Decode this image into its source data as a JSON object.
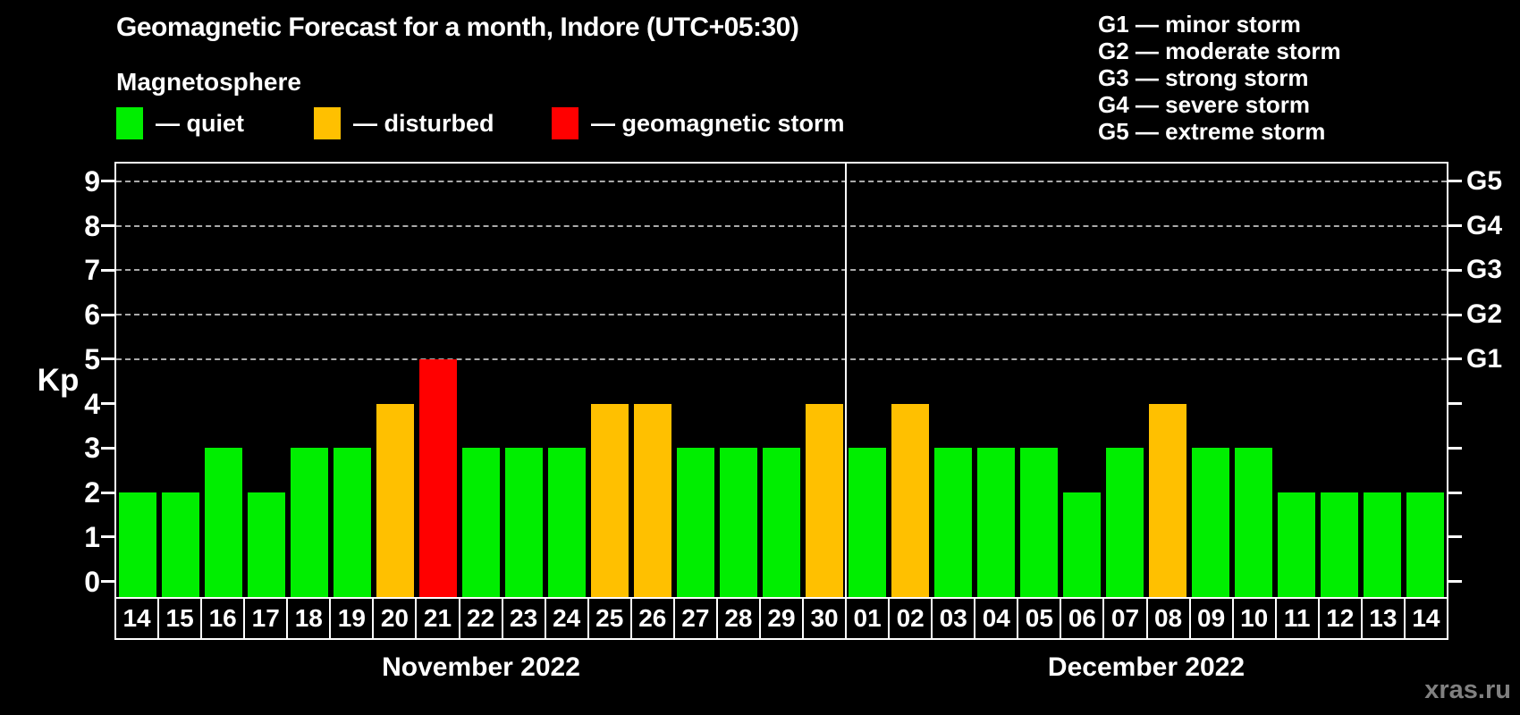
{
  "title": "Geomagnetic Forecast for a month, Indore (UTC+05:30)",
  "subtitle": "Magnetosphere",
  "legend": {
    "items": [
      {
        "key": "quiet",
        "label": "— quiet",
        "color": "#00ee00"
      },
      {
        "key": "disturbed",
        "label": "— disturbed",
        "color": "#ffc000"
      },
      {
        "key": "storm",
        "label": "— geomagnetic storm",
        "color": "#ff0000"
      }
    ]
  },
  "g_scale_legend": [
    {
      "key": "g1",
      "label": "G1 — minor storm"
    },
    {
      "key": "g2",
      "label": "G2 — moderate storm"
    },
    {
      "key": "g3",
      "label": "G3 — strong storm"
    },
    {
      "key": "g4",
      "label": "G4 — severe storm"
    },
    {
      "key": "g5",
      "label": "G5 — extreme storm"
    }
  ],
  "watermark": "xras.ru",
  "chart_data": {
    "type": "bar",
    "title": "Geomagnetic Forecast for a month, Indore (UTC+05:30)",
    "ylabel": "Kp",
    "ylim": [
      0,
      9.5
    ],
    "y_ticks": [
      0,
      1,
      2,
      3,
      4,
      5,
      6,
      7,
      8,
      9
    ],
    "grid_levels": [
      5,
      6,
      7,
      8,
      9
    ],
    "grid_on": true,
    "legend_position": "top-left",
    "right_axis_labels": [
      {
        "level": 5,
        "label": "G1"
      },
      {
        "level": 6,
        "label": "G2"
      },
      {
        "level": 7,
        "label": "G3"
      },
      {
        "level": 8,
        "label": "G4"
      },
      {
        "level": 9,
        "label": "G5"
      }
    ],
    "colors": {
      "quiet": "#00ee00",
      "disturbed": "#ffc000",
      "storm": "#ff0000"
    },
    "months": [
      {
        "name": "November 2022",
        "days": [
          "14",
          "15",
          "16",
          "17",
          "18",
          "19",
          "20",
          "21",
          "22",
          "23",
          "24",
          "25",
          "26",
          "27",
          "28",
          "29",
          "30"
        ],
        "values": [
          2,
          2,
          3,
          2,
          3,
          3,
          4,
          5,
          3,
          3,
          3,
          4,
          4,
          3,
          3,
          3,
          4
        ],
        "conditions": [
          "quiet",
          "quiet",
          "quiet",
          "quiet",
          "quiet",
          "quiet",
          "disturbed",
          "storm",
          "quiet",
          "quiet",
          "quiet",
          "disturbed",
          "disturbed",
          "quiet",
          "quiet",
          "quiet",
          "disturbed"
        ]
      },
      {
        "name": "December 2022",
        "days": [
          "01",
          "02",
          "03",
          "04",
          "05",
          "06",
          "07",
          "08",
          "09",
          "10",
          "11",
          "12",
          "13",
          "14"
        ],
        "values": [
          3,
          4,
          3,
          3,
          3,
          2,
          3,
          4,
          3,
          3,
          2,
          2,
          2,
          2
        ],
        "conditions": [
          "quiet",
          "disturbed",
          "quiet",
          "quiet",
          "quiet",
          "quiet",
          "quiet",
          "disturbed",
          "quiet",
          "quiet",
          "quiet",
          "quiet",
          "quiet",
          "quiet"
        ]
      }
    ]
  }
}
